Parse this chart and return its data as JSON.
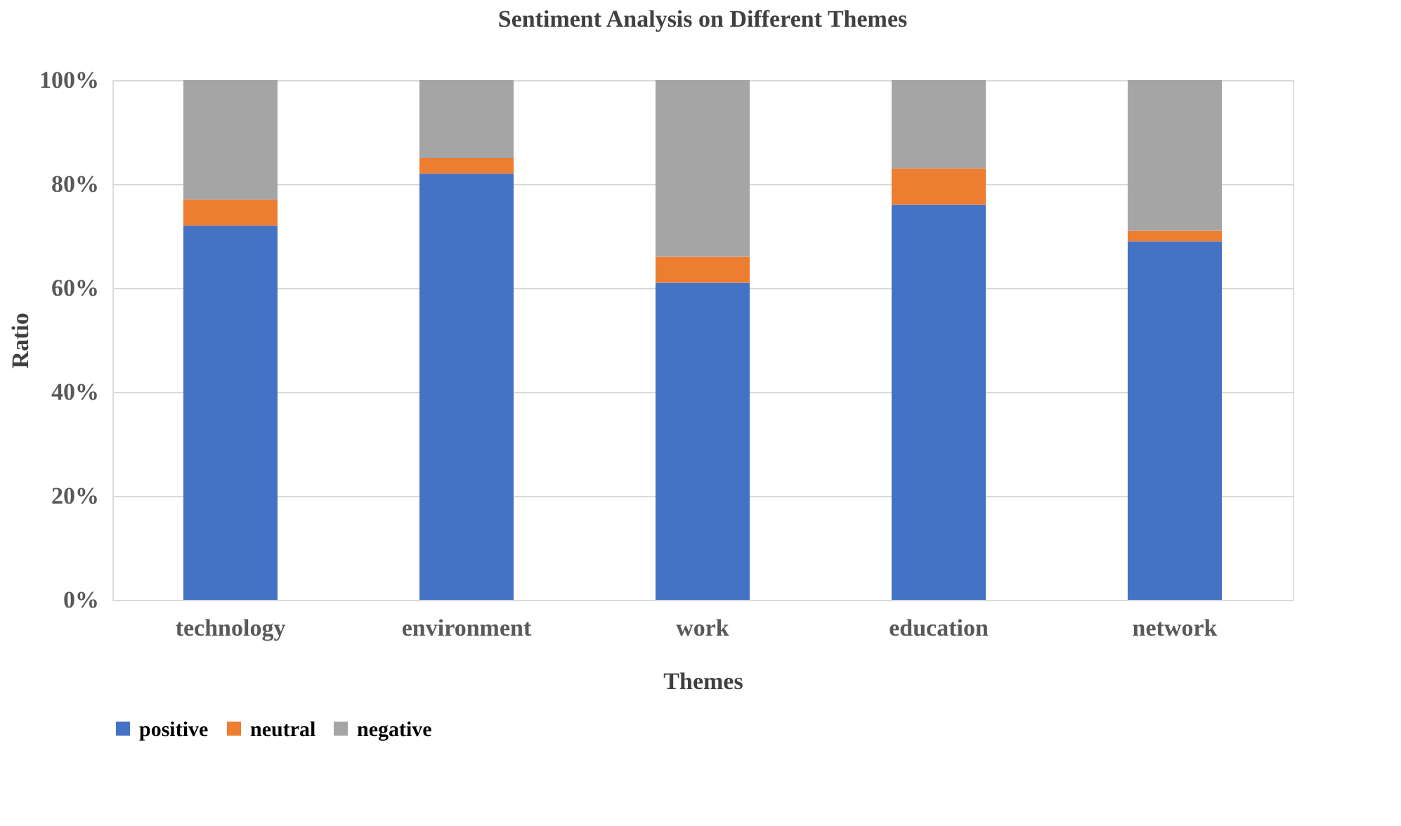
{
  "chart_data": {
    "type": "bar",
    "title": "Sentiment Analysis on Different Themes",
    "xlabel": "Themes",
    "ylabel": "Ratio",
    "categories": [
      "technology",
      "environment",
      "work",
      "education",
      "network"
    ],
    "stacked": true,
    "series": [
      {
        "name": "positive",
        "color": "#4472c4",
        "values": [
          72,
          82,
          61,
          76,
          69
        ]
      },
      {
        "name": "neutral",
        "color": "#ed7d31",
        "values": [
          5,
          3,
          5,
          7,
          2
        ]
      },
      {
        "name": "negative",
        "color": "#a5a5a5",
        "values": [
          23,
          15,
          34,
          17,
          29
        ]
      }
    ],
    "ylim": [
      0,
      100
    ],
    "yticks": [
      {
        "value": 0,
        "label": "0%"
      },
      {
        "value": 20,
        "label": "20%"
      },
      {
        "value": 40,
        "label": "40%"
      },
      {
        "value": 60,
        "label": "60%"
      },
      {
        "value": 80,
        "label": "80%"
      },
      {
        "value": 100,
        "label": "100%"
      }
    ],
    "grid": "y",
    "legend": "bottom"
  }
}
